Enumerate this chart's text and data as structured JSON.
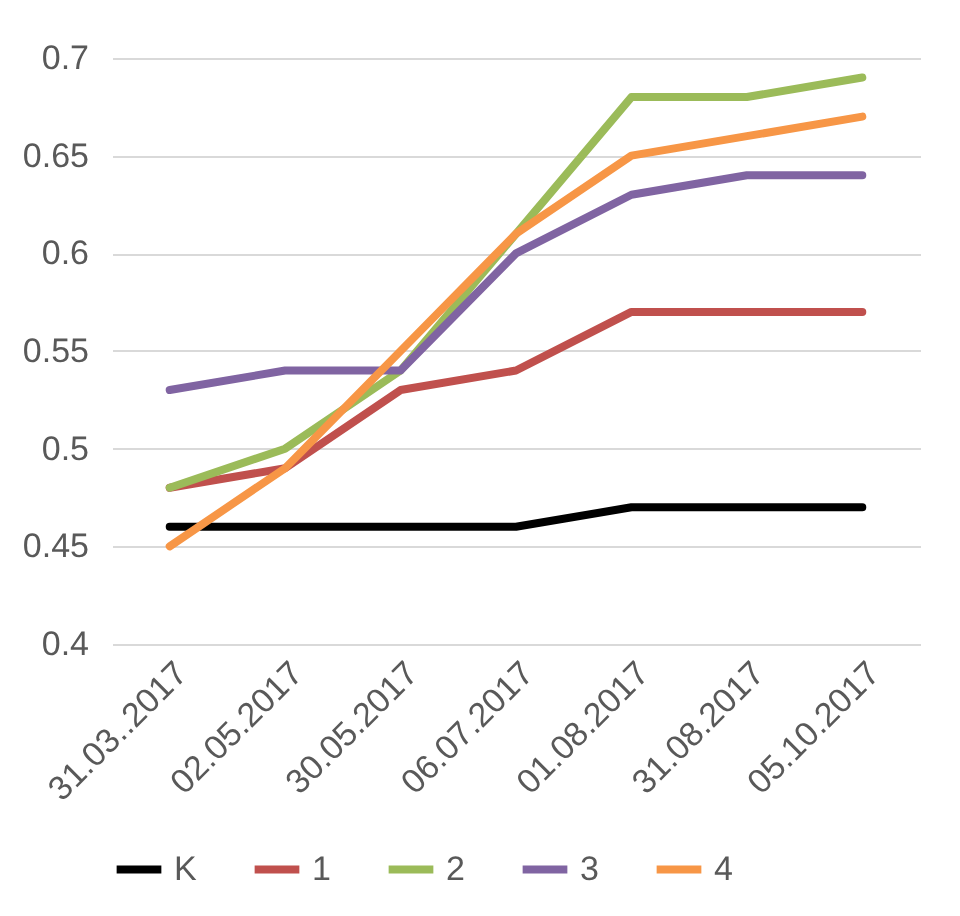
{
  "chart_data": {
    "type": "line",
    "categories": [
      "31.03..2017",
      "02.05.2017",
      "30.05.2017",
      "06.07.2017",
      "01.08.2017",
      "31.08.2017",
      "05.10.2017"
    ],
    "series": [
      {
        "name": "K",
        "color": "#000000",
        "values": [
          0.46,
          0.46,
          0.46,
          0.46,
          0.47,
          0.47,
          0.47
        ]
      },
      {
        "name": "1",
        "color": "#c0504d",
        "values": [
          0.48,
          0.49,
          0.53,
          0.54,
          0.57,
          0.57,
          0.57
        ]
      },
      {
        "name": "2",
        "color": "#9bbb59",
        "values": [
          0.48,
          0.5,
          0.54,
          0.61,
          0.68,
          0.68,
          0.69
        ]
      },
      {
        "name": "3",
        "color": "#8064a2",
        "values": [
          0.53,
          0.54,
          0.54,
          0.6,
          0.63,
          0.64,
          0.64
        ]
      },
      {
        "name": "4",
        "color": "#f79646",
        "values": [
          0.45,
          0.49,
          0.55,
          0.61,
          0.65,
          0.66,
          0.67
        ]
      }
    ],
    "ylim": [
      0.4,
      0.7
    ],
    "yticks": [
      0.4,
      0.45,
      0.5,
      0.55,
      0.6,
      0.65,
      0.7
    ],
    "grid": "y",
    "legend": "bottom",
    "marker": "none",
    "line_style": "solid"
  }
}
